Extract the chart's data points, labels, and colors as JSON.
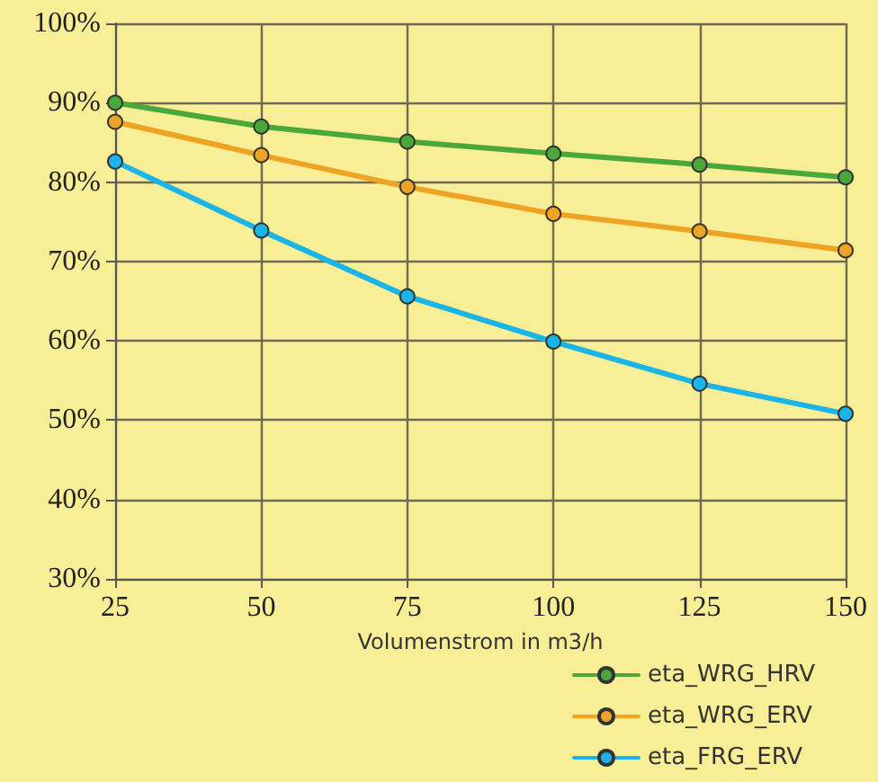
{
  "chart_data": {
    "type": "line",
    "xlabel": "Volumenstrom in m3/h",
    "x": [
      25,
      50,
      75,
      100,
      125,
      150
    ],
    "xlim": [
      25,
      150
    ],
    "xticks": [
      25,
      50,
      75,
      100,
      125,
      150
    ],
    "ylim": [
      30,
      100
    ],
    "yticks": [
      {
        "value": 30,
        "label": "30%"
      },
      {
        "value": 40,
        "label": "40%"
      },
      {
        "value": 50,
        "label": "50%"
      },
      {
        "value": 60,
        "label": "60%"
      },
      {
        "value": 70,
        "label": "70%"
      },
      {
        "value": 80,
        "label": "80%"
      },
      {
        "value": 90,
        "label": "90%"
      },
      {
        "value": 100,
        "label": "100%"
      }
    ],
    "series": [
      {
        "name": "eta_WRG_HRV",
        "color": "#4aa83a",
        "values": [
          90,
          87.0,
          85.1,
          83.6,
          82.2,
          80.6
        ]
      },
      {
        "name": "eta_WRG_ERV",
        "color": "#eea323",
        "values": [
          87.6,
          83.4,
          79.4,
          76.0,
          73.8,
          71.4
        ]
      },
      {
        "name": "eta_FRG_ERV",
        "color": "#1ab4e8",
        "values": [
          82.6,
          73.9,
          65.6,
          59.9,
          54.6,
          50.8
        ]
      }
    ],
    "grid": true,
    "legend": "bottom right",
    "marker": "circle",
    "line_style": "solid"
  }
}
